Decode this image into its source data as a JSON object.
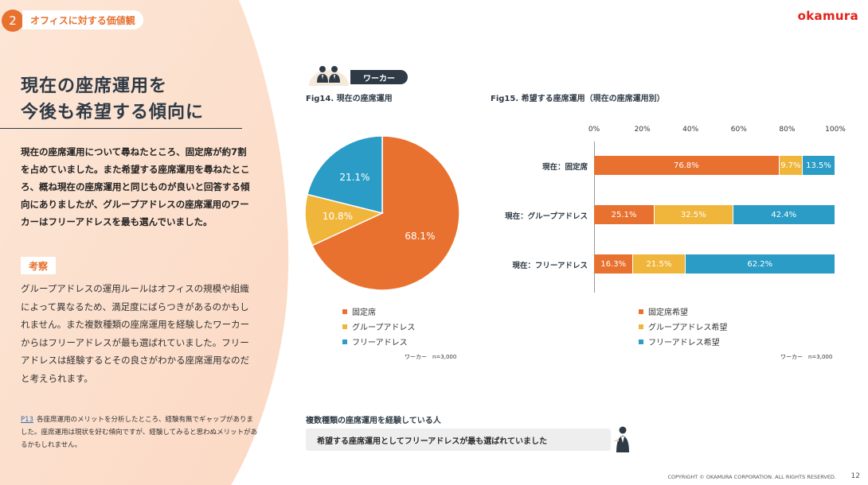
{
  "section": {
    "number": "2",
    "title": "オフィスに対する価値観"
  },
  "brand": {
    "logo": "okamura",
    "accent": "#e8712f",
    "logo_color": "#e2231a"
  },
  "heading": {
    "line1": "現在の座席運用を",
    "line2": "今後も希望する傾向に"
  },
  "lead": "現在の座席運用について尋ねたところ、固定席が約7割を占めていました。また希望する座席運用を尋ねたところ、概ね現在の座席運用と同じものが良いと回答する傾向にありましたが、グループアドレスの座席運用のワーカーはフリーアドレスを最も選んでいました。",
  "kousatsu": {
    "label": "考察",
    "body": "グループアドレスの運用ルールはオフィスの規模や組織によって異なるため、満足度にばらつきがあるのかもしれません。また複数種類の座席運用を経験したワーカーからはフリーアドレスが最も選ばれていました。フリーアドレスは経験するとその良さがわかる座席運用なのだと考えられます。"
  },
  "note": {
    "link": "P13",
    "text": "各座席運用のメリットを分析したところ、経験有無でギャップがありました。座席運用は現状を好む傾向ですが、経験してみると思わぬメリットがあるかもしれません。"
  },
  "badge": {
    "label": "ワーカー"
  },
  "fig14": {
    "title": "Fig14. 現在の座席運用",
    "sample": "ワーカー　n=3,000"
  },
  "fig15": {
    "title": "Fig15. 希望する座席運用（現在の座席運用別）",
    "sample": "ワーカー　n=3,000"
  },
  "chart_data": [
    {
      "type": "pie",
      "title": "Fig14. 現在の座席運用",
      "categories": [
        "固定席",
        "グループアドレス",
        "フリーアドレス"
      ],
      "values": [
        68.1,
        10.8,
        21.1
      ],
      "value_labels": [
        "68.1%",
        "10.8%",
        "21.1%"
      ],
      "colors": [
        "#e8712f",
        "#f0b63c",
        "#2a9cc6"
      ],
      "legend": "bottom"
    },
    {
      "type": "bar",
      "orientation": "horizontal",
      "stacked": true,
      "title": "Fig15. 希望する座席運用（現在の座席運用別）",
      "categories": [
        "現在：固定席",
        "現在：グループアドレス",
        "現在：フリーアドレス"
      ],
      "series": [
        {
          "name": "固定席希望",
          "values": [
            76.8,
            25.1,
            16.3
          ],
          "labels": [
            "76.8%",
            "25.1%",
            "16.3%"
          ],
          "color": "#e8712f"
        },
        {
          "name": "グループアドレス希望",
          "values": [
            9.7,
            32.5,
            21.5
          ],
          "labels": [
            "9.7%",
            "32.5%",
            "21.5%"
          ],
          "color": "#f0b63c"
        },
        {
          "name": "フリーアドレス希望",
          "values": [
            13.5,
            42.4,
            62.2
          ],
          "labels": [
            "13.5%",
            "42.4%",
            "62.2%"
          ],
          "color": "#2a9cc6"
        }
      ],
      "xlim": [
        0,
        100
      ],
      "ticks": [
        "0%",
        "20%",
        "40%",
        "60%",
        "80%",
        "100%"
      ],
      "legend": "bottom"
    }
  ],
  "bottom": {
    "title": "複数種類の座席運用を経験している人",
    "message": "希望する座席運用としてフリーアドレスが最も選ばれていました"
  },
  "footer": {
    "copyright": "COPYRIGHT © OKAMURA CORPORATION. ALL RIGHTS RESERVED.",
    "page": "12"
  }
}
